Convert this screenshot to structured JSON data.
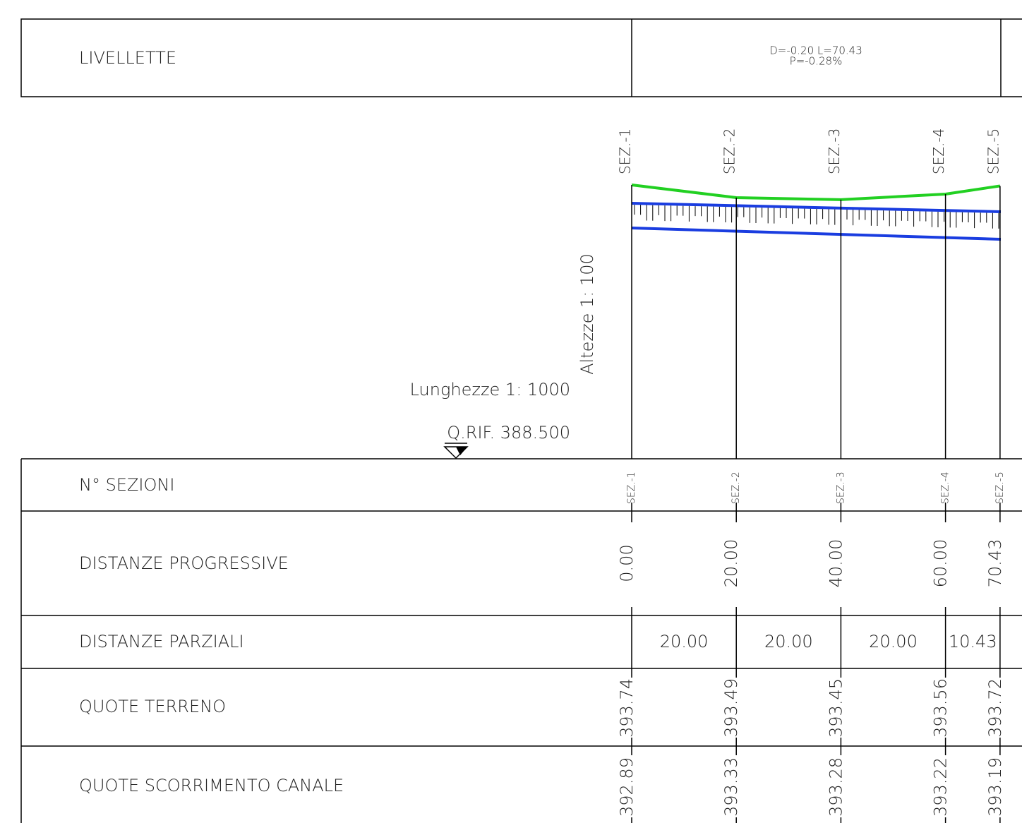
{
  "livellette": {
    "label": "LIVELLETTE",
    "gradient": "D=-0.20 L=70.43",
    "slope": "P=-0.28%"
  },
  "scales": {
    "heights": "Altezze 1: 100",
    "lengths": "Lunghezze 1: 1000",
    "reference": "Q.RIF. 388.500"
  },
  "sections": [
    "SEZ.-1",
    "SEZ.-2",
    "SEZ.-3",
    "SEZ.-4",
    "SEZ.-5"
  ],
  "rows": {
    "sections_label": "N° SEZIONI",
    "progressive": {
      "label": "DISTANZE PROGRESSIVE",
      "values": [
        "0.00",
        "20.00",
        "40.00",
        "60.00",
        "70.43"
      ]
    },
    "partial": {
      "label": "DISTANZE PARZIALI",
      "values": [
        "20.00",
        "20.00",
        "20.00",
        "10.43"
      ]
    },
    "terrain": {
      "label": "QUOTE TERRENO",
      "values": [
        "393.74",
        "393.49",
        "393.45",
        "393.56",
        "393.72"
      ]
    },
    "canal": {
      "label": "QUOTE SCORRIMENTO CANALE",
      "values": [
        "392.89",
        "393.33",
        "393.28",
        "393.22",
        "393.19"
      ]
    }
  }
}
